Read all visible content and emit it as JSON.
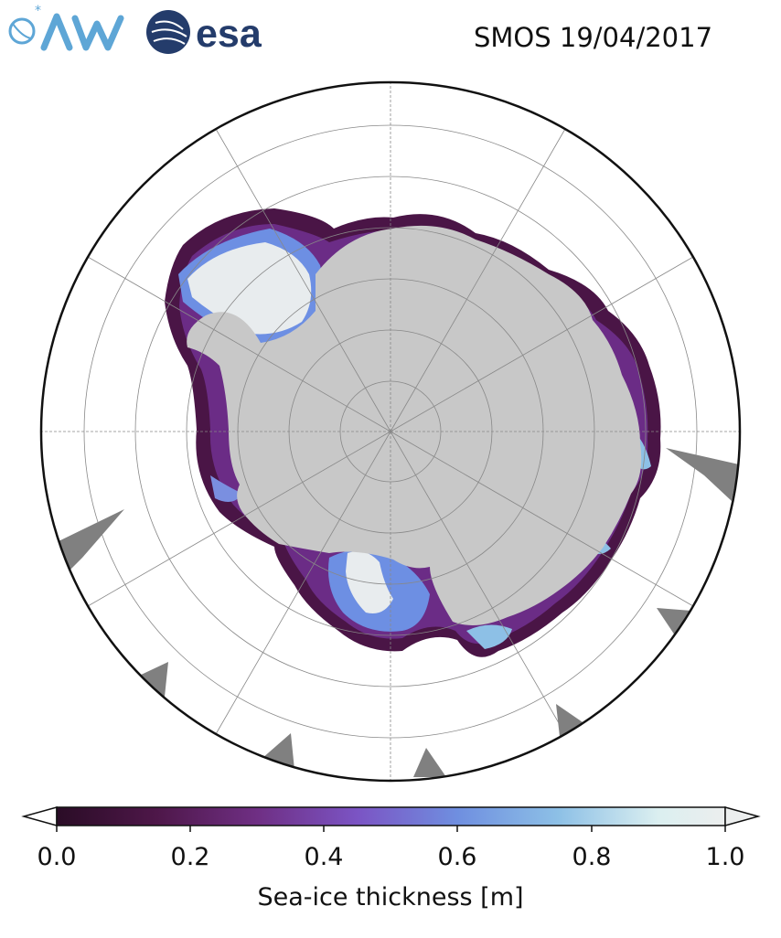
{
  "header": {
    "title": "SMOS 19/04/2017",
    "logos": [
      {
        "name": "awi-logo",
        "text": "AWI"
      },
      {
        "name": "esa-logo",
        "text": "esa"
      }
    ]
  },
  "colorbar": {
    "label": "Sea-ice thickness [m]",
    "ticks": [
      "0.0",
      "0.2",
      "0.4",
      "0.6",
      "0.8",
      "1.0"
    ],
    "range": [
      0.0,
      1.0
    ],
    "extend": "both",
    "colormap": [
      "#2a0c26",
      "#4e1749",
      "#6f2f84",
      "#7b54c4",
      "#6f8fe0",
      "#8dc0e6",
      "#dbeff0",
      "#eceeee"
    ]
  },
  "map": {
    "projection": "south-polar-stereographic",
    "land_color": "#c8c8c8",
    "missing_color": "#808080",
    "graticule": true
  }
}
